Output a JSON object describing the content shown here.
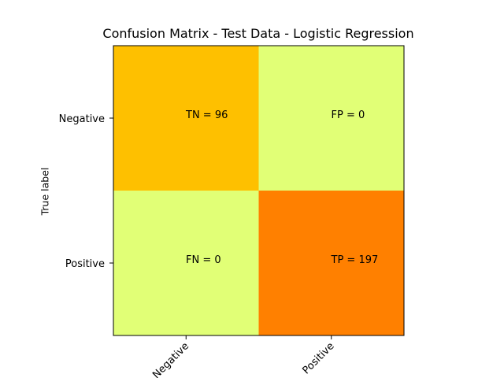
{
  "chart_data": {
    "type": "heatmap",
    "title": "Confusion Matrix - Test Data - Logistic Regression",
    "ylabel": "True label",
    "xlabel": "",
    "row_labels": [
      "Negative",
      "Positive"
    ],
    "col_labels": [
      "Negative",
      "Positive"
    ],
    "matrix": [
      [
        96,
        0
      ],
      [
        0,
        197
      ]
    ],
    "cell_annotations": [
      [
        "TN = 96",
        "FP = 0"
      ],
      [
        "FN = 0",
        "TP = 197"
      ]
    ],
    "cell_colors": [
      [
        "#fec000",
        "#e1ff76"
      ],
      [
        "#e1ff76",
        "#ff8000"
      ]
    ],
    "colormap": "Wistia",
    "grid": false,
    "legend": "none"
  }
}
